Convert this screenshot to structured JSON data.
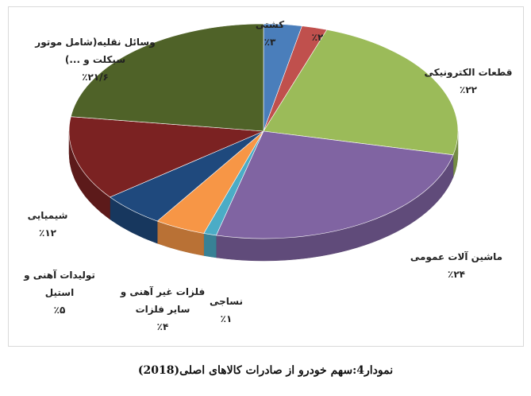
{
  "chart_data": {
    "type": "pie",
    "title": "نمودار4:سهم خودرو از صادرات کالاهای اصلی(2018)",
    "categories": [
      "کشتی",
      null,
      "قطعات الکترونیکی",
      "ماشین آلات عمومی",
      "نساجی",
      "فلزات غیر آهنی و سایر فلزات",
      "تولیدات آهنی و استیل",
      "شیمیایی",
      "وسائل نقلیه(شامل موتور سیکلت و ...)"
    ],
    "values": [
      3,
      2,
      22,
      24,
      1,
      4,
      5,
      12,
      21.6
    ],
    "value_labels": [
      "٪۳",
      "٪۲",
      "٪۲۲",
      "٪۲۴",
      "٪۱",
      "٪۴",
      "٪۵",
      "٪۱۲",
      "٪۲۱/۶"
    ],
    "colors": [
      "#4a7ebb",
      "#c0504d",
      "#9bbb59",
      "#8064a2",
      "#4bacc6",
      "#f79646",
      "#1f497d",
      "#7b2222",
      "#4f6228"
    ]
  }
}
